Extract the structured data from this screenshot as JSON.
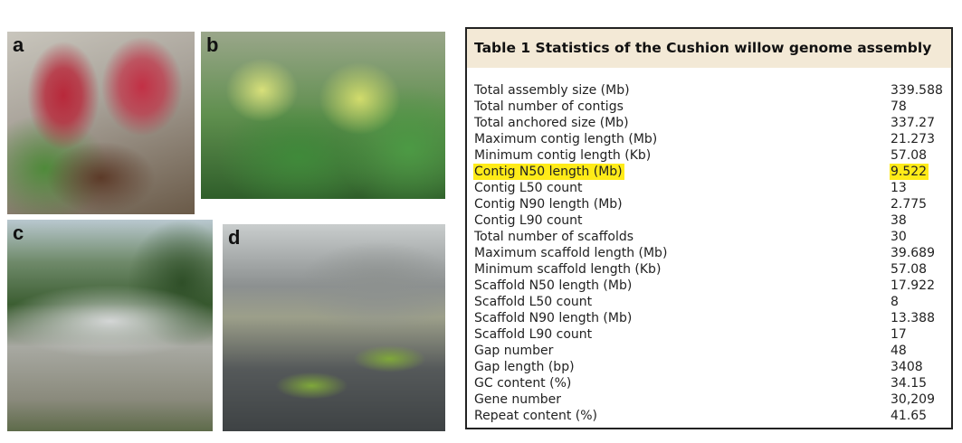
{
  "photos": [
    {
      "label": "a"
    },
    {
      "label": "b"
    },
    {
      "label": "c"
    },
    {
      "label": "d"
    }
  ],
  "table": {
    "title": "Table 1 Statistics of the Cushion willow genome assembly",
    "highlight_color": "#ffeb18",
    "rows": [
      {
        "label": "Total assembly size (Mb)",
        "value": "339.588"
      },
      {
        "label": "Total number of contigs",
        "value": "78"
      },
      {
        "label": "Total anchored size (Mb)",
        "value": "337.27"
      },
      {
        "label": "Maximum contig length (Mb)",
        "value": "21.273"
      },
      {
        "label": "Minimum contig length (Kb)",
        "value": "57.08"
      },
      {
        "label": "Contig N50 length (Mb)",
        "value": "9.522",
        "highlighted": true
      },
      {
        "label": "Contig L50 count",
        "value": "13"
      },
      {
        "label": "Contig N90 length (Mb)",
        "value": "2.775"
      },
      {
        "label": "Contig L90 count",
        "value": "38"
      },
      {
        "label": "Total number of scaffolds",
        "value": "30"
      },
      {
        "label": "Maximum scaffold length (Mb)",
        "value": "39.689"
      },
      {
        "label": "Minimum scaffold length (Kb)",
        "value": "57.08"
      },
      {
        "label": "Scaffold N50 length (Mb)",
        "value": "17.922"
      },
      {
        "label": "Scaffold L50 count",
        "value": "8"
      },
      {
        "label": "Scaffold N90 length (Mb)",
        "value": "13.388"
      },
      {
        "label": "Scaffold L90 count",
        "value": "17"
      },
      {
        "label": "Gap number",
        "value": "48"
      },
      {
        "label": "Gap length (bp)",
        "value": "3408"
      },
      {
        "label": "GC content (%)",
        "value": "34.15"
      },
      {
        "label": "Gene number",
        "value": "30,209"
      },
      {
        "label": "Repeat content (%)",
        "value": "41.65"
      }
    ]
  }
}
